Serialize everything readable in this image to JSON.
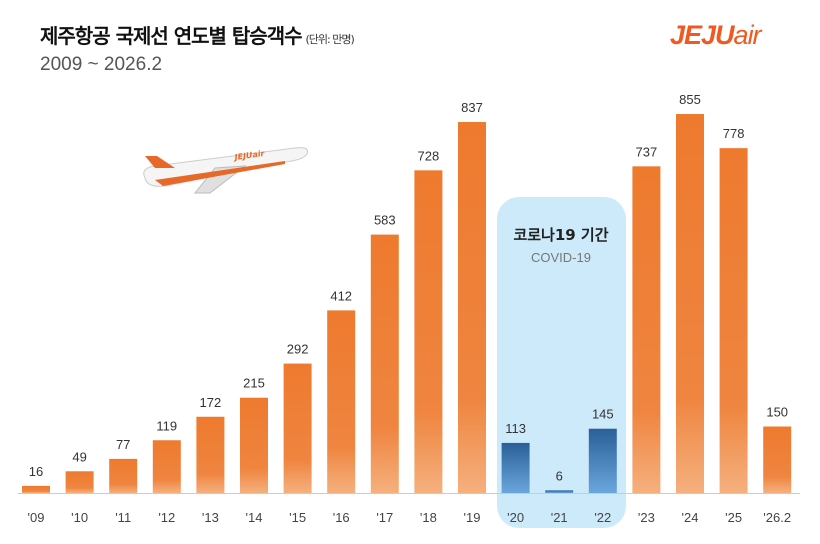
{
  "header": {
    "title": "제주항공 국제선 연도별 탑승객수",
    "unit": "(단위: 만명)",
    "subtitle": "2009 ~ 2026.2",
    "logo": "JEJUair"
  },
  "chart_data": {
    "type": "bar",
    "title": "제주항공 국제선 연도별 탑승객수",
    "unit": "(단위: 만명)",
    "categories": [
      "'09",
      "'10",
      "'11",
      "'12",
      "'13",
      "'14",
      "'15",
      "'16",
      "'17",
      "'18",
      "'19",
      "'20",
      "'21",
      "'22",
      "'23",
      "'24",
      "'25",
      "'26.2"
    ],
    "values": [
      16,
      49,
      77,
      119,
      172,
      215,
      292,
      412,
      583,
      728,
      837,
      113,
      6,
      145,
      737,
      855,
      778,
      150
    ],
    "highlight": {
      "categories": [
        "'20",
        "'21",
        "'22"
      ],
      "label": "코로나19 기간",
      "sublabel": "COVID-19",
      "color": "#2f6aa6",
      "box_color": "#cdeafb"
    },
    "bar_color": "#ee7a2e",
    "ylim": [
      0,
      870
    ],
    "grid": false,
    "legend": "none"
  }
}
